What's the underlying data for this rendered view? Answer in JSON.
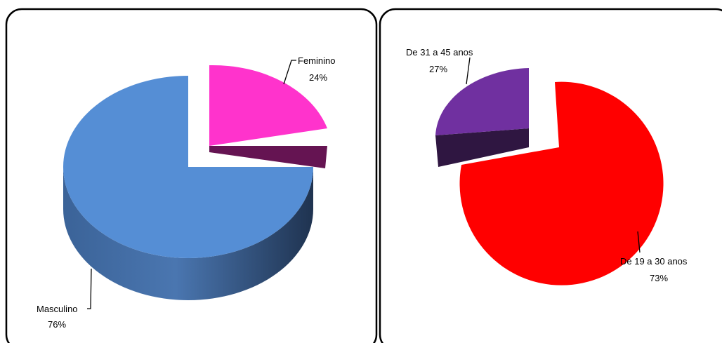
{
  "chart_data": [
    {
      "type": "pie",
      "variant": "3d-exploded",
      "categories": [
        "Masculino",
        "Feminino"
      ],
      "values": [
        76,
        24
      ],
      "value_labels": [
        "76%",
        "24%"
      ],
      "colors": [
        "#558ED5",
        "#FF33CC"
      ],
      "exploded": "Feminino",
      "legend": "none"
    },
    {
      "type": "pie",
      "variant": "3d-exploded",
      "categories": [
        "De 19 a 30 anos",
        "De 31 a 45 anos"
      ],
      "values": [
        73,
        27
      ],
      "value_labels": [
        "73%",
        "27%"
      ],
      "colors": [
        "#FF0000",
        "#7030A0"
      ],
      "exploded": "De 31 a 45 anos",
      "legend": "none"
    }
  ]
}
